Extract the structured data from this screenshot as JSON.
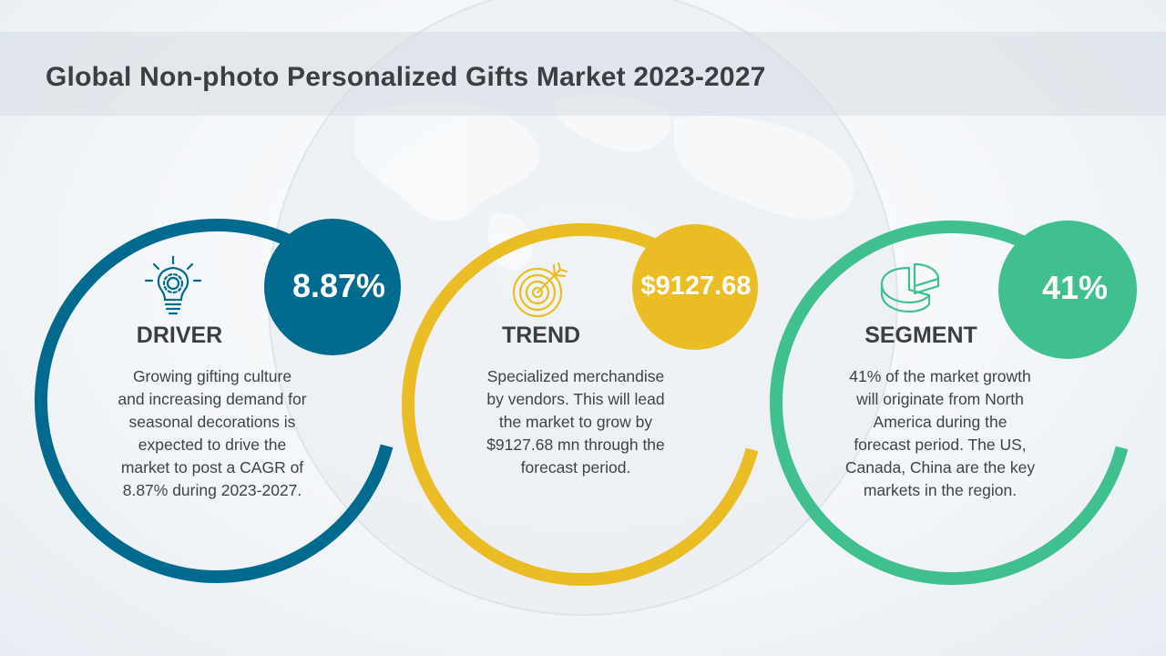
{
  "title": "Global Non-photo Personalized Gifts Market 2023-2027",
  "colors": {
    "driver": "#006b8f",
    "trend": "#ebbd24",
    "segment": "#3fc08e",
    "text": "#3b3f44"
  },
  "cards": [
    {
      "heading": "DRIVER",
      "value": "8.87%",
      "icon": "lightbulb-gear-icon",
      "lines": [
        "Growing gifting culture",
        "and increasing demand for",
        "seasonal decorations is",
        "expected to drive the",
        "market to post a CAGR of",
        "8.87% during 2023-2027."
      ]
    },
    {
      "heading": "TREND",
      "value": "$9127.68",
      "icon": "target-arrow-icon",
      "lines": [
        "Specialized merchandise",
        "by vendors. This will lead",
        "the market to grow by",
        "$9127.68 mn through the",
        "forecast period."
      ]
    },
    {
      "heading": "SEGMENT",
      "value": "41%",
      "icon": "pie-chart-icon",
      "lines": [
        "41% of the market growth",
        "will originate from North",
        "America during the",
        "forecast period. The US,",
        "Canada, China are the key",
        "markets in the region."
      ]
    }
  ]
}
